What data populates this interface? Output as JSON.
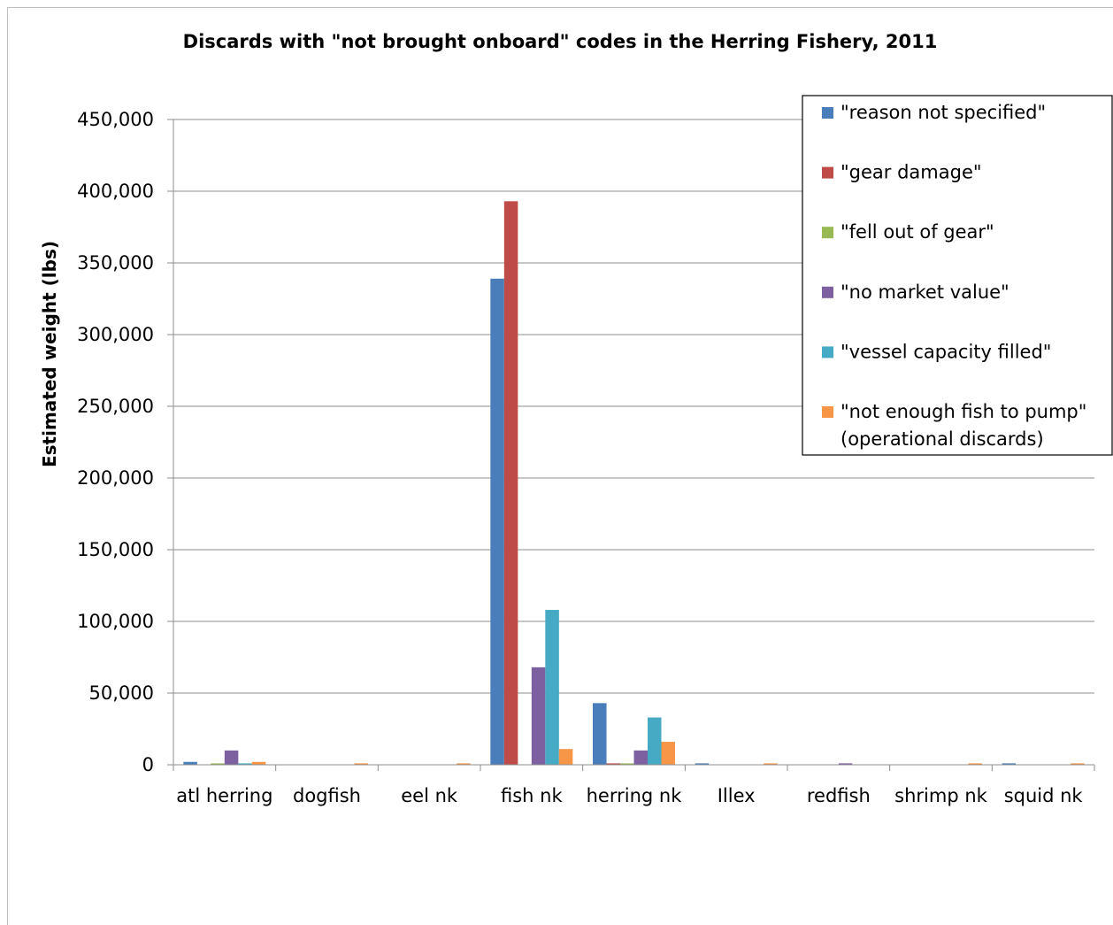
{
  "chart_data": {
    "type": "bar",
    "title": "Discards with \"not brought onboard\" codes in the Herring Fishery, 2011",
    "xlabel": "",
    "ylabel": "Estimated weight (lbs)",
    "ylim": [
      0,
      450000
    ],
    "yticks": [
      "0",
      "50,000",
      "100,000",
      "150,000",
      "200,000",
      "250,000",
      "300,000",
      "350,000",
      "400,000",
      "450,000"
    ],
    "ytick_values": [
      0,
      50000,
      100000,
      150000,
      200000,
      250000,
      300000,
      350000,
      400000,
      450000
    ],
    "grid": true,
    "legend_position": "top-right",
    "categories": [
      "atl herring",
      "dogfish",
      "eel nk",
      "fish nk",
      "herring nk",
      "Illex",
      "redfish",
      "shrimp nk",
      "squid nk"
    ],
    "series": [
      {
        "name": "\"reason not specified\"",
        "color": "#4a7ebb",
        "values": [
          2000,
          0,
          0,
          339000,
          43000,
          1000,
          0,
          0,
          1000
        ]
      },
      {
        "name": "\"gear damage\"",
        "color": "#be4b48",
        "values": [
          0,
          0,
          0,
          393000,
          1000,
          0,
          0,
          0,
          0
        ]
      },
      {
        "name": "\"fell out of gear\"",
        "color": "#98b954",
        "values": [
          1000,
          0,
          0,
          0,
          1000,
          0,
          0,
          0,
          0
        ]
      },
      {
        "name": "\"no market value\"",
        "color": "#7d60a0",
        "values": [
          10000,
          0,
          0,
          68000,
          10000,
          0,
          1000,
          0,
          0
        ]
      },
      {
        "name": "\"vessel capacity filled\"",
        "color": "#46aac5",
        "values": [
          1000,
          0,
          0,
          108000,
          33000,
          0,
          0,
          0,
          0
        ]
      },
      {
        "name": "\"not enough fish to pump\"",
        "name_line2": "(operational discards)",
        "color": "#f79646",
        "values": [
          2000,
          1000,
          1000,
          11000,
          16000,
          1000,
          0,
          1000,
          1000
        ]
      }
    ]
  }
}
